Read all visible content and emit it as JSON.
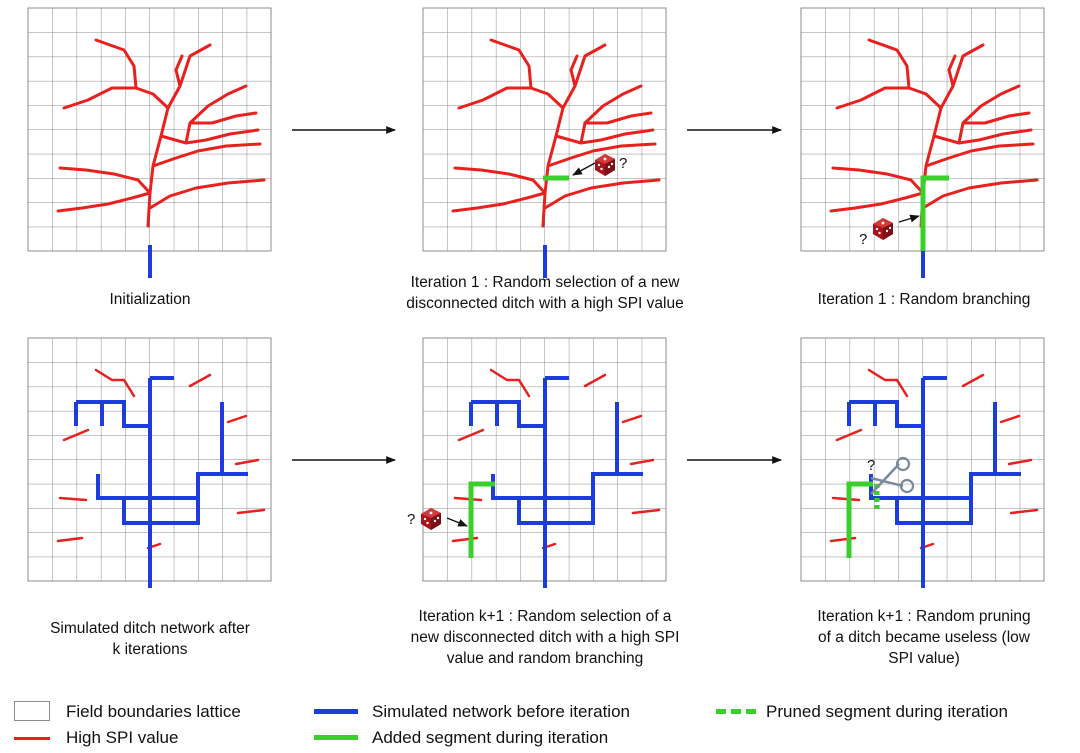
{
  "colors": {
    "grid": "#8c8c8c",
    "spi": "#e8201e",
    "network": "#1c3ce0",
    "added": "#39d02c",
    "die": "#a8141c"
  },
  "panels": [
    {
      "caption_lines": [
        "Initialization"
      ]
    },
    {
      "caption_lines": [
        "Iteration 1 : Random selection of a new",
        "disconnected ditch with a high SPI value"
      ]
    },
    {
      "caption_lines": [
        "Iteration 1 : Random branching"
      ]
    },
    {
      "caption_lines": [
        "Simulated ditch network after",
        "k iterations"
      ]
    },
    {
      "caption_lines": [
        "Iteration k+1 : Random selection of a",
        "new disconnected ditch with a high SPI",
        "value and random branching"
      ]
    },
    {
      "caption_lines": [
        "Iteration k+1 : Random pruning",
        "of a ditch became useless (low",
        "SPI value)"
      ]
    }
  ],
  "question_mark": "?",
  "icons": [
    "dice-icon",
    "scissors-icon",
    "arrow-icon"
  ],
  "legend": {
    "field_lattice": "Field boundaries lattice",
    "high_spi": "High SPI value",
    "network_before": "Simulated network before iteration",
    "added_segment": "Added segment during iteration",
    "pruned_segment": "Pruned segment during iteration"
  }
}
